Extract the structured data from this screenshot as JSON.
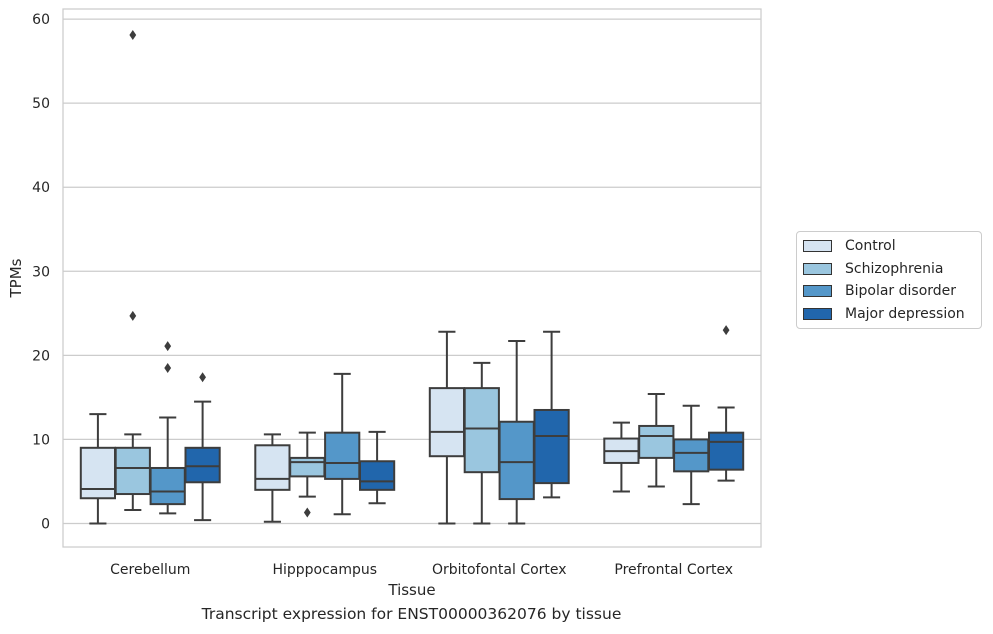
{
  "chart_data": {
    "type": "box",
    "xlabel": "Tissue",
    "ylabel": "TPMs",
    "caption": "Transcript expression for ENST00000362076 by tissue",
    "categories": [
      "Cerebellum",
      "Hipppocampus",
      "Orbitofontal Cortex",
      "Prefrontal Cortex"
    ],
    "ylim": [
      -2.8,
      61.2
    ],
    "yticks": [
      0,
      10,
      20,
      30,
      40,
      50,
      60
    ],
    "grid": "horizontal",
    "legend_position": "right",
    "series": [
      {
        "name": "Control",
        "color": "#d6e4f2",
        "boxes": [
          {
            "whisker_low": 0.0,
            "q1": 3.0,
            "median": 4.1,
            "q3": 9.0,
            "whisker_high": 13.0,
            "outliers": []
          },
          {
            "whisker_low": 0.2,
            "q1": 4.0,
            "median": 5.3,
            "q3": 9.3,
            "whisker_high": 10.6,
            "outliers": []
          },
          {
            "whisker_low": 0.0,
            "q1": 8.0,
            "median": 10.9,
            "q3": 16.1,
            "whisker_high": 22.8,
            "outliers": []
          },
          {
            "whisker_low": 3.8,
            "q1": 7.2,
            "median": 8.6,
            "q3": 10.1,
            "whisker_high": 12.0,
            "outliers": []
          }
        ]
      },
      {
        "name": "Schizophrenia",
        "color": "#9ac6df",
        "boxes": [
          {
            "whisker_low": 1.6,
            "q1": 3.5,
            "median": 6.6,
            "q3": 9.0,
            "whisker_high": 10.6,
            "outliers": [
              24.7
            ]
          },
          {
            "whisker_low": 3.2,
            "q1": 5.6,
            "median": 7.3,
            "q3": 7.8,
            "whisker_high": 10.8,
            "outliers": [
              1.3
            ]
          },
          {
            "whisker_low": 0.0,
            "q1": 6.1,
            "median": 11.3,
            "q3": 16.1,
            "whisker_high": 19.1,
            "outliers": []
          },
          {
            "whisker_low": 4.4,
            "q1": 7.8,
            "median": 10.4,
            "q3": 11.6,
            "whisker_high": 15.4,
            "outliers": []
          }
        ]
      },
      {
        "name": "Bipolar disorder",
        "color": "#5497c9",
        "boxes": [
          {
            "whisker_low": 1.2,
            "q1": 2.3,
            "median": 3.8,
            "q3": 6.6,
            "whisker_high": 12.6,
            "outliers": [
              21.1,
              18.5
            ]
          },
          {
            "whisker_low": 1.1,
            "q1": 5.3,
            "median": 7.2,
            "q3": 10.8,
            "whisker_high": 17.8,
            "outliers": []
          },
          {
            "whisker_low": 0.0,
            "q1": 2.9,
            "median": 7.3,
            "q3": 12.1,
            "whisker_high": 21.7,
            "outliers": []
          },
          {
            "whisker_low": 2.3,
            "q1": 6.2,
            "median": 8.4,
            "q3": 10.0,
            "whisker_high": 14.0,
            "outliers": []
          }
        ]
      },
      {
        "name": "Major depression",
        "color": "#2166ac",
        "boxes": [
          {
            "whisker_low": 0.4,
            "q1": 4.9,
            "median": 6.8,
            "q3": 9.0,
            "whisker_high": 14.5,
            "outliers": [
              17.4
            ]
          },
          {
            "whisker_low": 2.4,
            "q1": 4.0,
            "median": 5.0,
            "q3": 7.4,
            "whisker_high": 10.9,
            "outliers": []
          },
          {
            "whisker_low": 3.1,
            "q1": 4.8,
            "median": 10.4,
            "q3": 13.5,
            "whisker_high": 22.8,
            "outliers": []
          },
          {
            "whisker_low": 5.1,
            "q1": 6.4,
            "median": 9.7,
            "q3": 10.8,
            "whisker_high": 13.8,
            "outliers": [
              23.0
            ]
          }
        ]
      }
    ],
    "extra_outliers": [
      {
        "category": "Cerebellum",
        "series": "Schizophrenia",
        "value": 58.1
      }
    ]
  }
}
